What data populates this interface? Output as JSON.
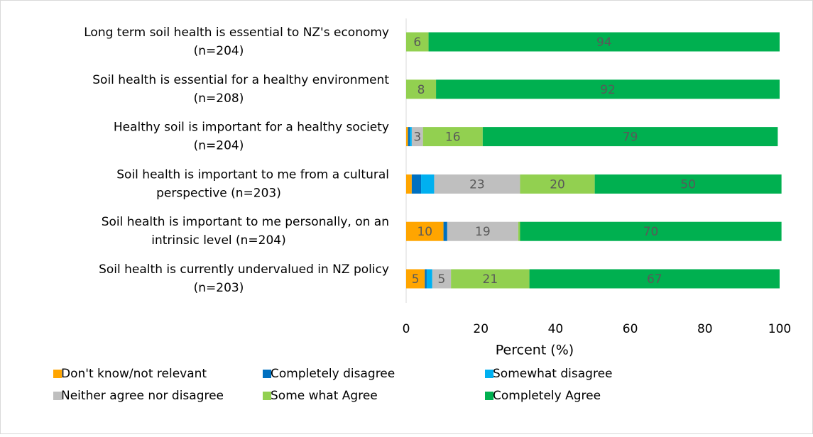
{
  "chart_data": {
    "type": "bar",
    "orientation": "horizontal",
    "stacked": true,
    "x_label": "Percent (%)",
    "categories": [
      [
        "Long term soil health is essential to NZ's  economy",
        "(n=204)"
      ],
      [
        "Soil health is essential for a healthy environment",
        "(n=208)"
      ],
      [
        "Healthy soil is important for a healthy society",
        "(n=204)"
      ],
      [
        "Soil health is important to me from a cultural",
        "perspective (n=203)"
      ],
      [
        "Soil health is important to me personally, on an",
        "intrinsic level (n=204)"
      ],
      [
        "Soil health is currently undervalued in NZ policy",
        "(n=203)"
      ]
    ],
    "series": [
      {
        "name": "Don't know/not relevant",
        "color": "#ffa500",
        "values": [
          0,
          0,
          0.5,
          1.5,
          10,
          5
        ],
        "value_labels": [
          null,
          null,
          null,
          null,
          "10",
          "5"
        ]
      },
      {
        "name": "Completely disagree",
        "color": "#0070c0",
        "values": [
          0,
          0,
          0.5,
          2.5,
          1,
          0.5
        ],
        "value_labels": [
          null,
          null,
          null,
          null,
          null,
          null
        ]
      },
      {
        "name": "Somewhat  disagree",
        "color": "#00b0f0",
        "values": [
          0,
          0,
          0.5,
          3.5,
          0,
          1.5
        ],
        "value_labels": [
          null,
          null,
          null,
          null,
          null,
          null
        ]
      },
      {
        "name": "Neither agree nor disagree",
        "color": "#bfbfbf",
        "values": [
          0,
          0,
          3,
          23,
          19,
          5
        ],
        "value_labels": [
          null,
          null,
          "3",
          "23",
          "19",
          "5"
        ]
      },
      {
        "name": "Some what Agree",
        "color": "#92d050",
        "values": [
          6,
          8,
          16,
          20,
          0.5,
          21
        ],
        "value_labels": [
          "6",
          "8",
          "16",
          "20",
          null,
          "21"
        ]
      },
      {
        "name": "Completely Agree",
        "color": "#00b050",
        "values": [
          94,
          92,
          79,
          50,
          70,
          67
        ],
        "value_labels": [
          "94",
          "92",
          "79",
          "50",
          "70",
          "67"
        ]
      }
    ],
    "xlim": [
      0,
      100
    ],
    "xticks": [
      0,
      20,
      40,
      60,
      80,
      100
    ],
    "legend": "bottom"
  }
}
